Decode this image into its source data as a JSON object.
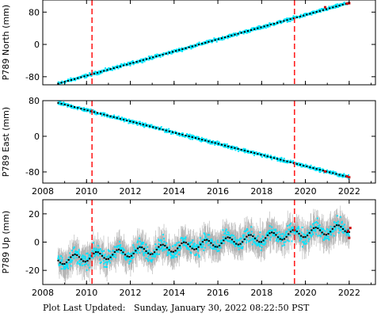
{
  "footer": {
    "label": "Plot Last Updated:",
    "datetime": "Sunday, January 30, 2022 08:22:50 PST"
  },
  "colors": {
    "data_points": "#00e5ff",
    "error_bars": "#b0b0b0",
    "model": "#000000",
    "events": "#ff2020",
    "recent_points": "#cc0000"
  },
  "chart_data": [
    {
      "type": "scatter",
      "title": "",
      "ylabel": "P789 North (mm)",
      "xlabel": "",
      "xlim": [
        2008,
        2023.2
      ],
      "ylim": [
        -100,
        110
      ],
      "xticks": [
        2008,
        2010,
        2012,
        2014,
        2016,
        2018,
        2020,
        2022
      ],
      "xtick_labels": [
        "",
        "",
        "",
        "",
        "",
        "",
        "",
        ""
      ],
      "yticks": [
        -80,
        0,
        80
      ],
      "ytick_labels": [
        "-80",
        "0",
        "80"
      ],
      "grid": false,
      "event_lines": [
        2010.25,
        2019.5
      ],
      "data_span": [
        2008.7,
        2022.0
      ],
      "trend": {
        "start": [
          2008.7,
          -97
        ],
        "end": [
          2022.0,
          103
        ]
      },
      "seasonal_amplitude": 0,
      "scatter_spread": 3,
      "error_bars": false,
      "recent_values": [
        [
          2020.9,
          92
        ],
        [
          2021.9,
          101
        ],
        [
          2022.0,
          102
        ]
      ]
    },
    {
      "type": "scatter",
      "title": "",
      "ylabel": "P789 East (mm)",
      "xlabel": "",
      "xlim": [
        2008,
        2023.2
      ],
      "ylim": [
        -105,
        80
      ],
      "xticks": [
        2008,
        2010,
        2012,
        2014,
        2016,
        2018,
        2020,
        2022
      ],
      "xtick_labels": [
        "2008",
        "2010",
        "2012",
        "2014",
        "2016",
        "2018",
        "2020",
        "2022"
      ],
      "yticks": [
        -80,
        0,
        80
      ],
      "ytick_labels": [
        "-80",
        "0",
        "80"
      ],
      "grid": false,
      "event_lines": [
        2010.25,
        2019.5
      ],
      "data_span": [
        2008.7,
        2022.0
      ],
      "trend": {
        "start": [
          2008.7,
          75
        ],
        "end": [
          2022.0,
          -92
        ]
      },
      "seasonal_amplitude": 0,
      "scatter_spread": 3,
      "error_bars": false,
      "recent_values": [
        [
          2020.9,
          -79
        ],
        [
          2021.9,
          -90
        ],
        [
          2022.0,
          -92
        ]
      ]
    },
    {
      "type": "scatter",
      "title": "",
      "ylabel": "P789 Up (mm)",
      "xlabel": "",
      "xlim": [
        2008,
        2023.2
      ],
      "ylim": [
        -30,
        30
      ],
      "xticks": [
        2008,
        2010,
        2012,
        2014,
        2016,
        2018,
        2020,
        2022
      ],
      "xtick_labels": [
        "2008",
        "2010",
        "2012",
        "2014",
        "2016",
        "2018",
        "2020",
        "2022"
      ],
      "yticks": [
        -20,
        0,
        20
      ],
      "ytick_labels": [
        "-20",
        "0",
        "20"
      ],
      "grid": false,
      "event_lines": [
        2010.25,
        2019.5
      ],
      "data_span": [
        2008.7,
        2022.0
      ],
      "trend": {
        "start": [
          2008.7,
          -13
        ],
        "end": [
          2022.0,
          10
        ]
      },
      "seasonal_amplitude": 3,
      "scatter_spread": 4,
      "error_bars": true,
      "recent_values": [
        [
          2021.95,
          8
        ],
        [
          2022.0,
          3
        ],
        [
          2022.05,
          10
        ]
      ]
    }
  ]
}
